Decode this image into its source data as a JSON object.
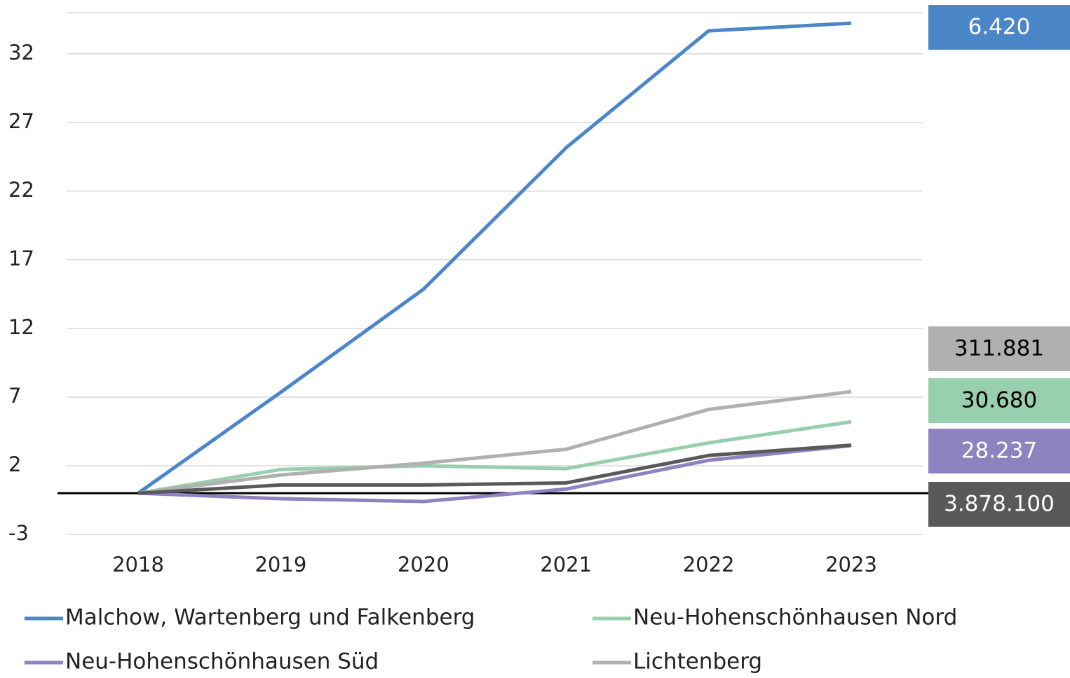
{
  "chart_data": {
    "type": "line",
    "categories": [
      "2018",
      "2019",
      "2020",
      "2021",
      "2022",
      "2023"
    ],
    "ylim": [
      -3,
      35
    ],
    "yticks": [
      -3,
      2,
      7,
      12,
      17,
      22,
      27,
      32
    ],
    "grid": true,
    "zero_line": true,
    "legend": "bottom",
    "series": [
      {
        "name": "Malchow, Wartenberg und Falkenberg",
        "color": "#4a86c8",
        "values": [
          0,
          7.35,
          14.85,
          25.15,
          33.67,
          34.23
        ],
        "end_label": "6.420",
        "label_text_color": "#ffffff"
      },
      {
        "name": "Neu-Hohenschönhausen Nord",
        "color": "#98cfae",
        "values": [
          0,
          1.73,
          2.0,
          1.79,
          3.67,
          5.2
        ],
        "end_label": "30.680",
        "label_text_color": "#000000"
      },
      {
        "name": "Neu-Hohenschönhausen Süd",
        "color": "#8e82c0",
        "values": [
          0,
          -0.4,
          -0.6,
          0.3,
          2.4,
          3.47
        ],
        "end_label": "28.237",
        "label_text_color": "#ffffff"
      },
      {
        "name": "Lichtenberg",
        "color": "#b0b0b0",
        "values": [
          0,
          1.33,
          2.19,
          3.2,
          6.1,
          7.4
        ],
        "end_label": "311.881",
        "label_text_color": "#000000"
      },
      {
        "color": "#595959",
        "values": [
          0,
          0.6,
          0.6,
          0.75,
          2.75,
          3.5
        ],
        "end_label": "3.878.100",
        "label_text_color": "#ffffff"
      }
    ]
  }
}
